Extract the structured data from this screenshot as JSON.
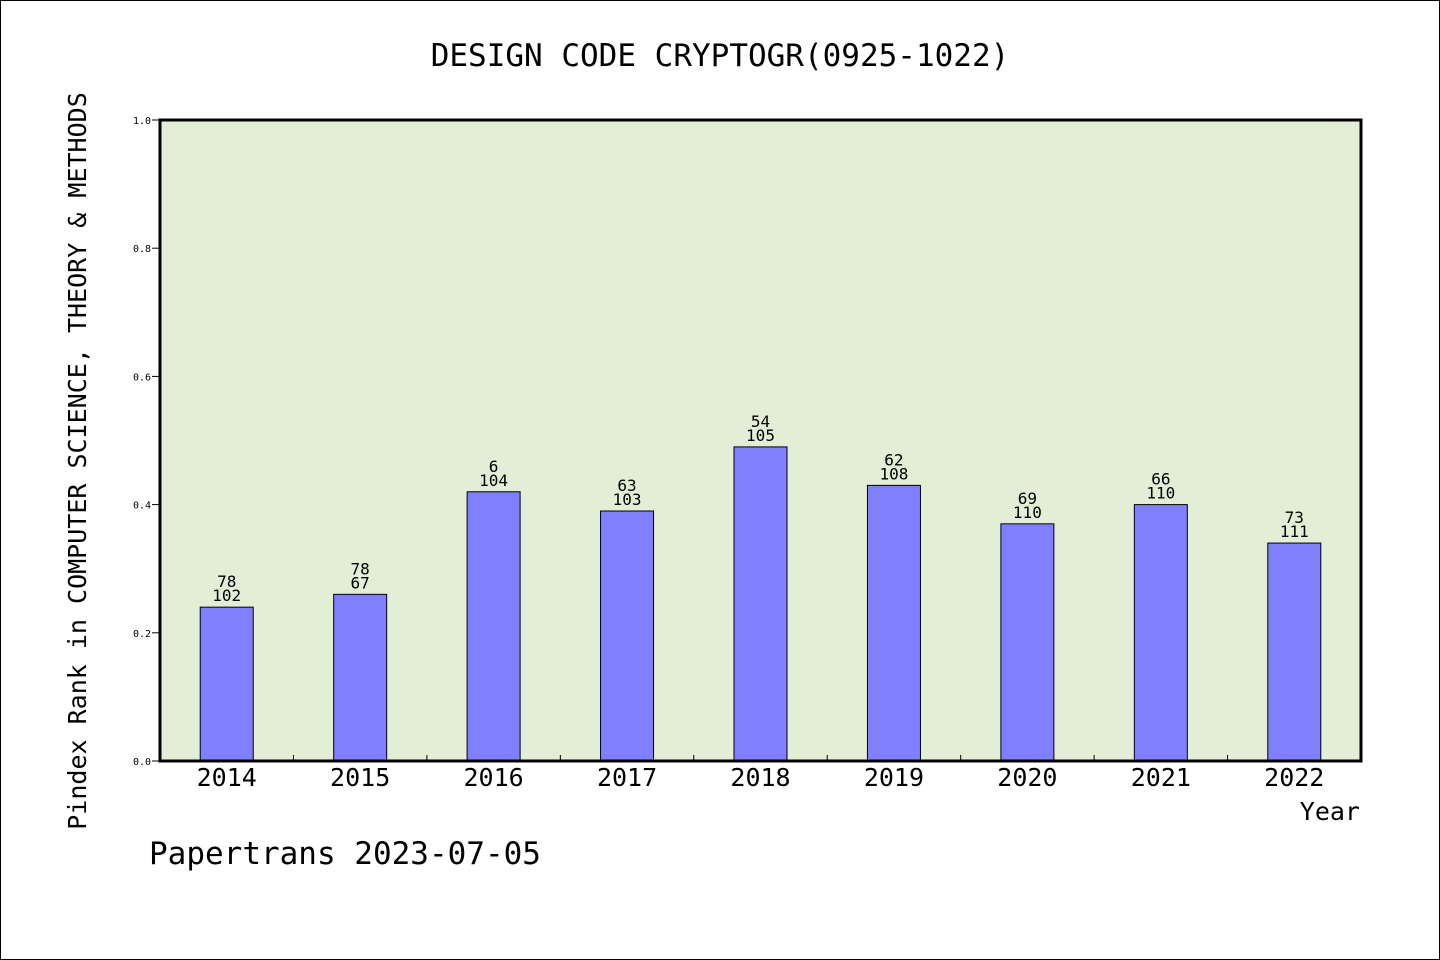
{
  "chart_data": {
    "type": "bar",
    "title": "DESIGN CODE CRYPTOGR(0925-1022)",
    "xlabel": "Year",
    "ylabel": "Pindex Rank in COMPUTER SCIENCE, THEORY & METHODS",
    "categories": [
      "2014",
      "2015",
      "2016",
      "2017",
      "2018",
      "2019",
      "2020",
      "2021",
      "2022"
    ],
    "values": [
      0.24,
      0.26,
      0.42,
      0.39,
      0.49,
      0.43,
      0.37,
      0.4,
      0.34
    ],
    "labels_top": [
      "78",
      "78",
      "6",
      "63",
      "54",
      "62",
      "69",
      "66",
      "73"
    ],
    "labels_bottom": [
      "102",
      "67",
      "104",
      "103",
      "105",
      "108",
      "110",
      "110",
      "111"
    ],
    "ylim": [
      0,
      1.0
    ],
    "yticks": [
      "0.0",
      "0.2",
      "0.4",
      "0.6",
      "0.8",
      "1.0"
    ],
    "grid": false,
    "colors": {
      "bar": "#8080ff",
      "plot_background": "#e2efd6"
    }
  },
  "footer": "Papertrans 2023-07-05"
}
